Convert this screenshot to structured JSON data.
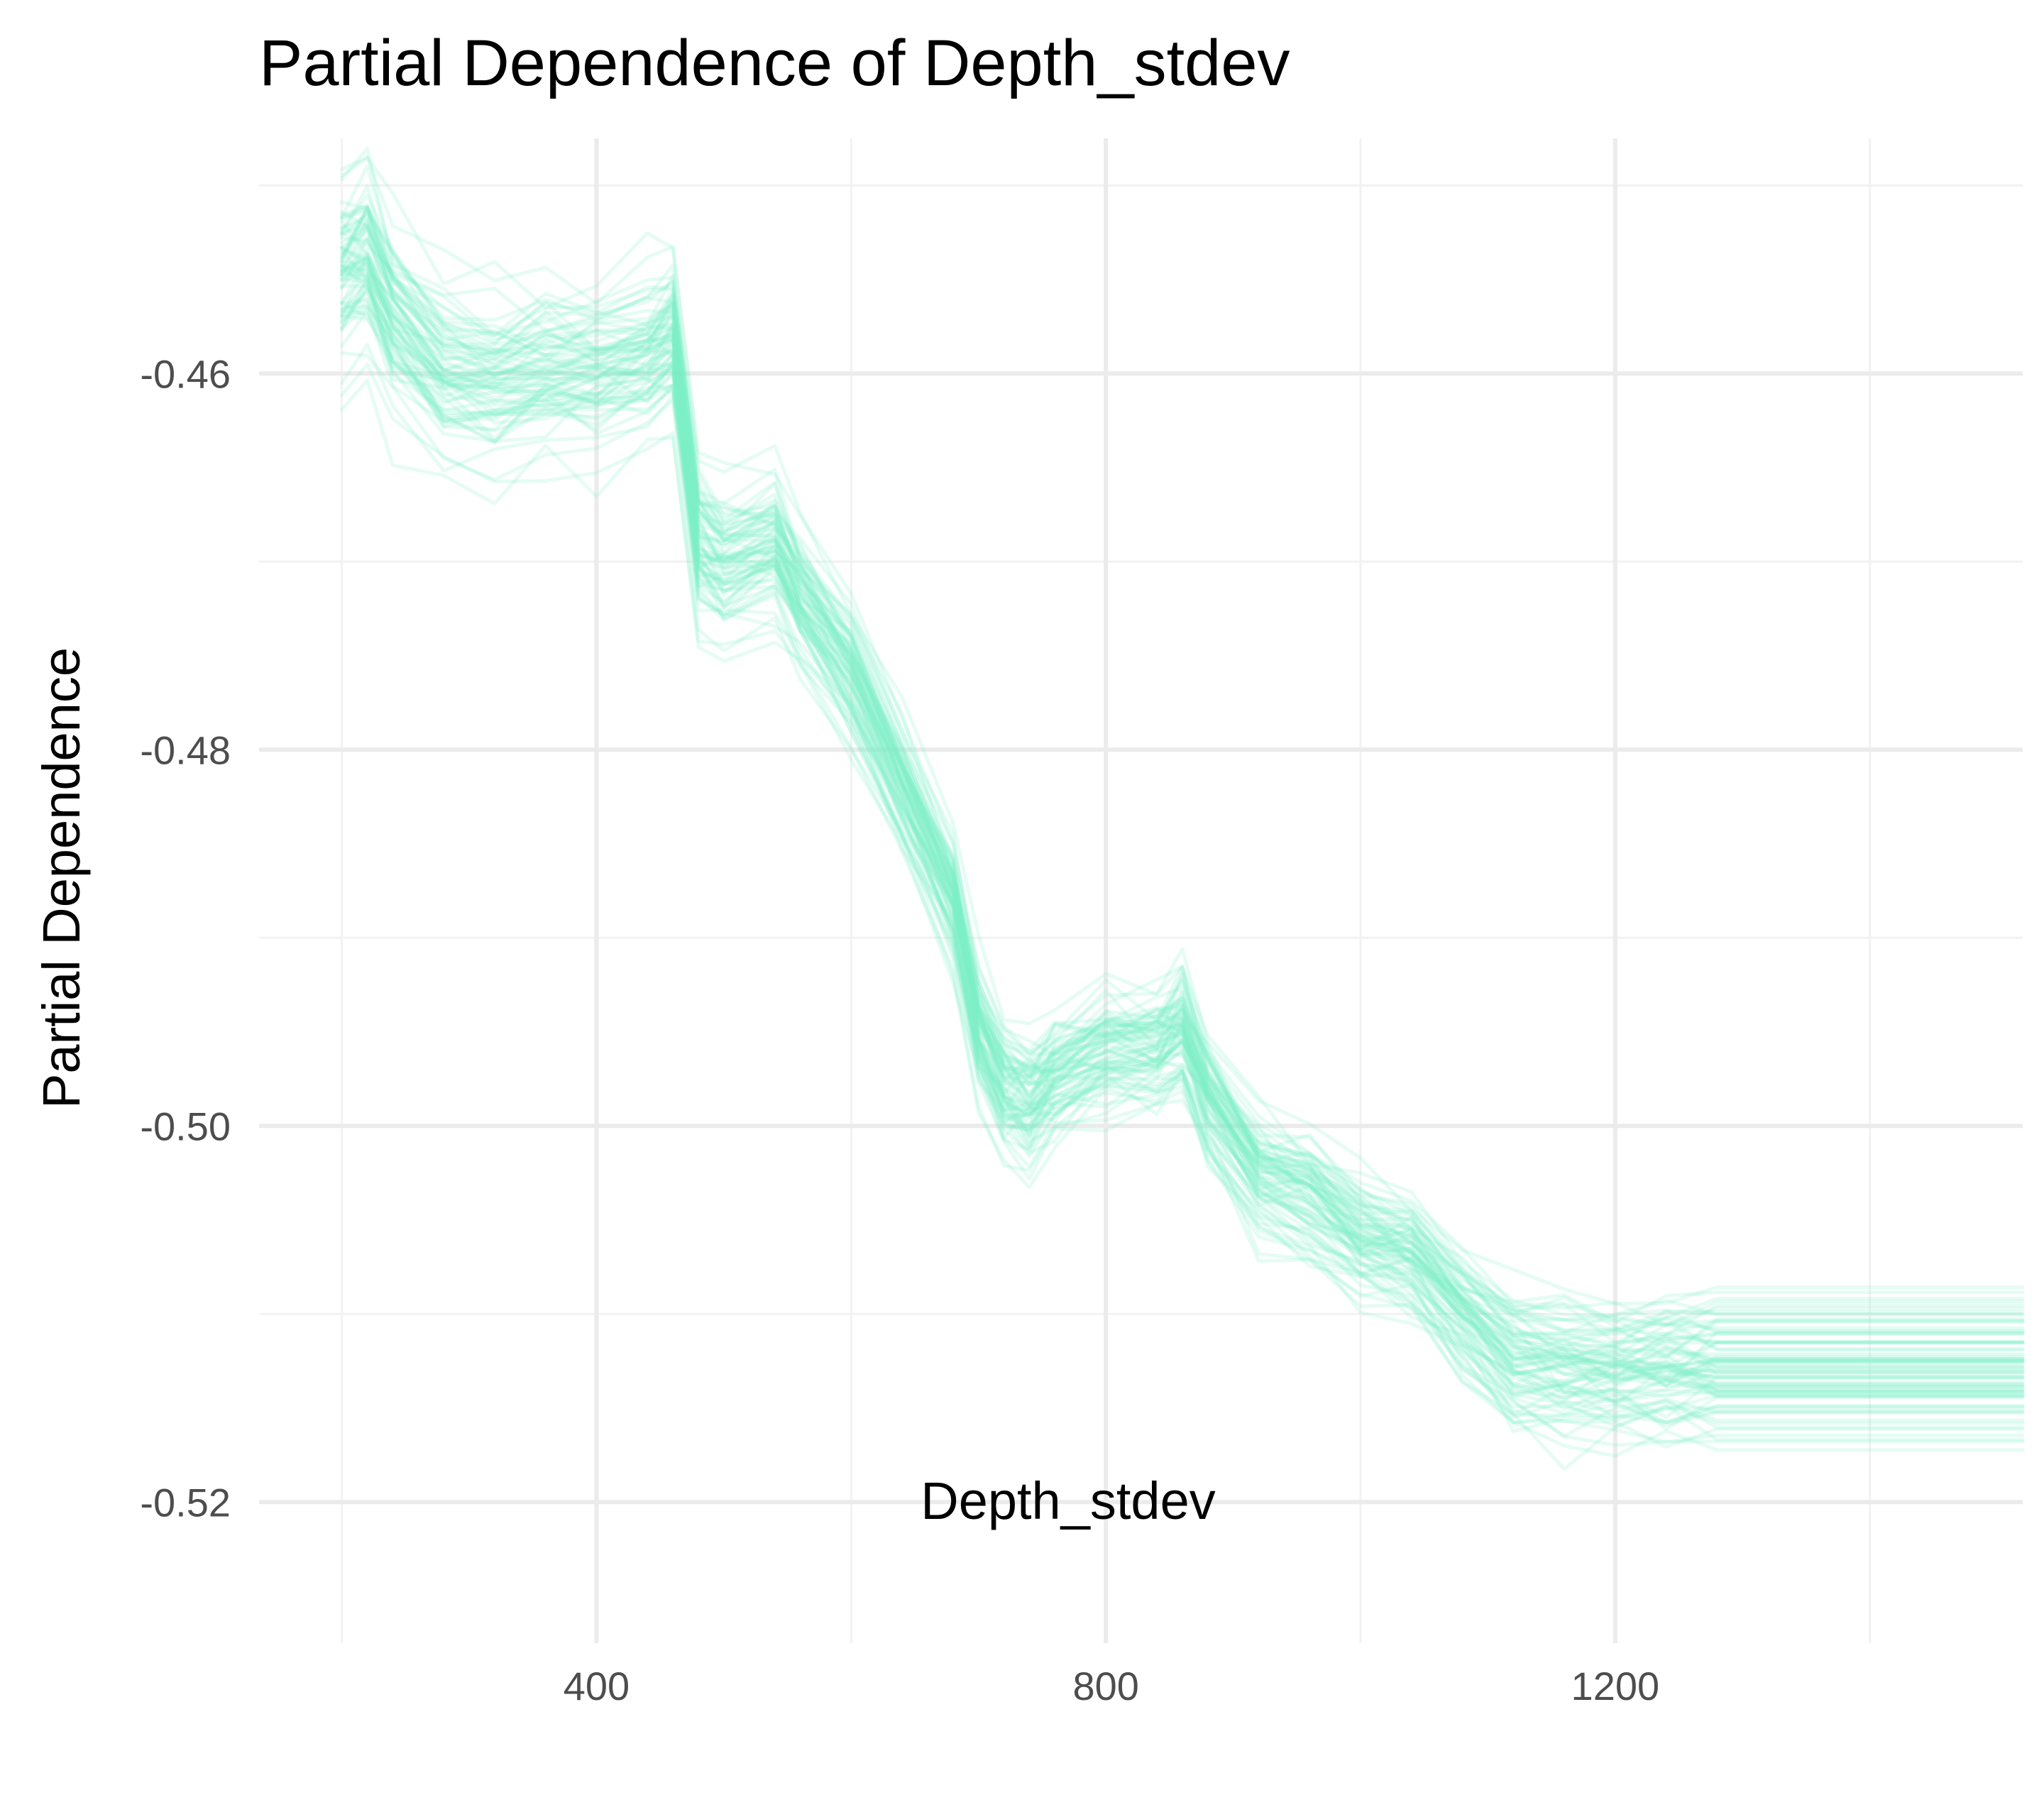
{
  "chart_data": {
    "type": "line",
    "title": "Partial Dependence of Depth_stdev",
    "xlabel": "Depth_stdev",
    "ylabel": "Partial Dependence",
    "xlim": [
      135,
      1520
    ],
    "ylim": [
      -0.5275,
      -0.4475
    ],
    "x_ticks": [
      400,
      800,
      1200
    ],
    "x_tick_labels": [
      "400",
      "800",
      "1200"
    ],
    "y_ticks": [
      -0.52,
      -0.5,
      -0.48,
      -0.46
    ],
    "y_tick_labels": [
      "-0.52",
      "-0.50",
      "-0.48",
      "-0.46"
    ],
    "grid": true,
    "legend": "none",
    "line_color": "#7ef2c6",
    "line_opacity": 0.2,
    "curve_count": 80,
    "x": [
      200,
      220,
      240,
      280,
      320,
      360,
      400,
      440,
      460,
      480,
      500,
      540,
      560,
      600,
      640,
      680,
      700,
      720,
      740,
      760,
      800,
      840,
      860,
      880,
      920,
      960,
      1000,
      1040,
      1080,
      1120,
      1160,
      1200,
      1240,
      1280,
      1520
    ],
    "representative_curve": [
      -0.4547,
      -0.4538,
      -0.457,
      -0.46,
      -0.4604,
      -0.4598,
      -0.4598,
      -0.459,
      -0.458,
      -0.469,
      -0.47,
      -0.469,
      -0.472,
      -0.476,
      -0.482,
      -0.488,
      -0.495,
      -0.498,
      -0.4988,
      -0.4975,
      -0.496,
      -0.496,
      -0.495,
      -0.4985,
      -0.5025,
      -0.504,
      -0.506,
      -0.507,
      -0.51,
      -0.5125,
      -0.513,
      -0.513,
      -0.513,
      -0.513,
      -0.513
    ]
  }
}
